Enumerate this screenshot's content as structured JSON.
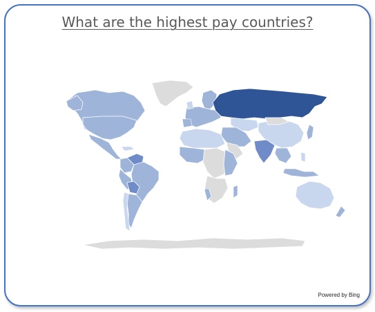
{
  "title": "What are the highest pay countries?",
  "credit": "Powered by Bing",
  "colors": {
    "frame": "#4472c4",
    "no_data": "#dcdcdc",
    "scale_low": "#c9d7ee",
    "scale_mid": "#9fb4d9",
    "scale_high": "#6f8cc8",
    "scale_top": "#2f5597"
  },
  "map_type": "filled-choropleth-world",
  "highlighted_regions": [
    {
      "region": "Russia",
      "level": "top"
    },
    {
      "region": "North America",
      "level": "mid"
    },
    {
      "region": "South America",
      "level": "mid-high"
    },
    {
      "region": "Europe",
      "level": "mid"
    },
    {
      "region": "Middle East",
      "level": "mid"
    },
    {
      "region": "India",
      "level": "mid"
    },
    {
      "region": "China",
      "level": "low"
    },
    {
      "region": "Southeast Asia",
      "level": "mid"
    },
    {
      "region": "Australia",
      "level": "low"
    },
    {
      "region": "Africa",
      "level": "mixed"
    },
    {
      "region": "Greenland",
      "level": "no-data"
    },
    {
      "region": "Antarctica",
      "level": "no-data"
    }
  ]
}
